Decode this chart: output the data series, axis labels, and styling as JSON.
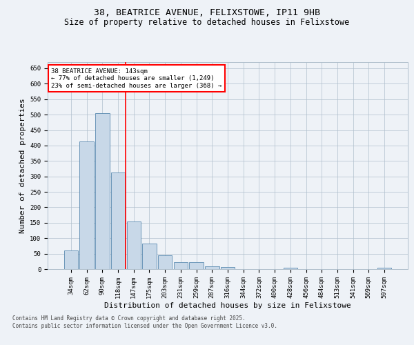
{
  "title_line1": "38, BEATRICE AVENUE, FELIXSTOWE, IP11 9HB",
  "title_line2": "Size of property relative to detached houses in Felixstowe",
  "xlabel": "Distribution of detached houses by size in Felixstowe",
  "ylabel": "Number of detached properties",
  "categories": [
    "34sqm",
    "62sqm",
    "90sqm",
    "118sqm",
    "147sqm",
    "175sqm",
    "203sqm",
    "231sqm",
    "259sqm",
    "287sqm",
    "316sqm",
    "344sqm",
    "372sqm",
    "400sqm",
    "428sqm",
    "456sqm",
    "484sqm",
    "513sqm",
    "541sqm",
    "569sqm",
    "597sqm"
  ],
  "values": [
    60,
    413,
    505,
    313,
    153,
    82,
    45,
    22,
    22,
    9,
    6,
    0,
    0,
    0,
    4,
    0,
    0,
    0,
    0,
    0,
    4
  ],
  "bar_color": "#c8d8e8",
  "bar_edge_color": "#5a8ab0",
  "vline_color": "red",
  "annotation_text": "38 BEATRICE AVENUE: 143sqm\n← 77% of detached houses are smaller (1,249)\n23% of semi-detached houses are larger (368) →",
  "annotation_box_color": "white",
  "annotation_box_edge_color": "red",
  "ylim": [
    0,
    670
  ],
  "yticks": [
    0,
    50,
    100,
    150,
    200,
    250,
    300,
    350,
    400,
    450,
    500,
    550,
    600,
    650
  ],
  "footer_text": "Contains HM Land Registry data © Crown copyright and database right 2025.\nContains public sector information licensed under the Open Government Licence v3.0.",
  "bg_color": "#eef2f7",
  "plot_bg_color": "#eef2f7",
  "grid_color": "#b0bfcc",
  "title_fontsize": 9.5,
  "subtitle_fontsize": 8.5,
  "tick_fontsize": 6.5,
  "label_fontsize": 8,
  "footer_fontsize": 5.5,
  "annot_fontsize": 6.5
}
